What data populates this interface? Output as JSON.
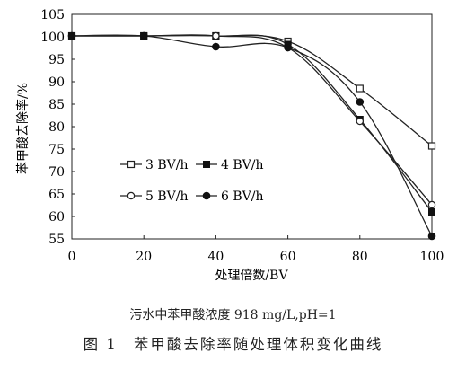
{
  "chart_data": {
    "type": "line",
    "ylabel": "苯甲酸去除率/%",
    "xlabel": "处理倍数/BV",
    "x": [
      0,
      20,
      40,
      60,
      80,
      100
    ],
    "xlim": [
      0,
      100
    ],
    "ylim": [
      55,
      105
    ],
    "xticks": [
      0,
      20,
      40,
      60,
      80,
      100
    ],
    "yticks": [
      55,
      60,
      65,
      70,
      75,
      80,
      85,
      90,
      95,
      100,
      105
    ],
    "grid": false,
    "legend": "inside, lower-left, two columns",
    "series": [
      {
        "name": "3 BV/h",
        "marker": "open-square",
        "values": [
          100.2,
          100.2,
          100.2,
          99.0,
          88.5,
          75.7
        ]
      },
      {
        "name": "4 BV/h",
        "marker": "filled-square",
        "values": [
          100.2,
          100.2,
          100.2,
          98.3,
          81.6,
          61.0
        ]
      },
      {
        "name": "5 BV/h",
        "marker": "open-circle",
        "values": [
          100.2,
          100.2,
          100.2,
          97.6,
          81.2,
          62.6
        ]
      },
      {
        "name": "6 BV/h",
        "marker": "filled-circle",
        "values": [
          100.2,
          100.2,
          97.8,
          97.6,
          85.5,
          55.6
        ]
      }
    ]
  },
  "note": "污水中苯甲酸浓度 918 mg/L,pH=1",
  "caption": {
    "number": "图 1",
    "title": "苯甲酸去除率随处理体积变化曲线"
  }
}
